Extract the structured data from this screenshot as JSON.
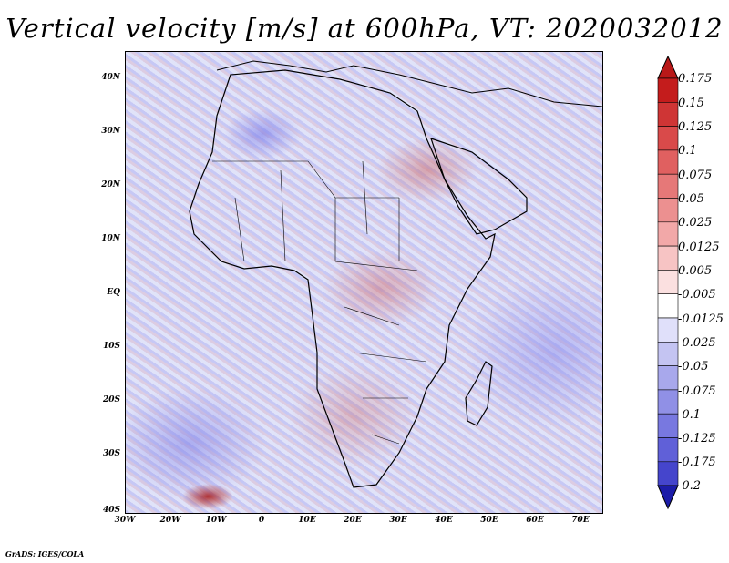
{
  "title": "Vertical velocity [m/s] at 600hPa, VT: 2020032012",
  "footer": "GrADS: IGES/COLA",
  "lat_labels": [
    "40N",
    "30N",
    "20N",
    "10N",
    "EQ",
    "10S",
    "20S",
    "30S",
    "40S"
  ],
  "lon_labels": [
    "30W",
    "20W",
    "10W",
    "0",
    "10E",
    "20E",
    "30E",
    "40E",
    "50E",
    "60E",
    "70E"
  ],
  "colorbar": {
    "labels": [
      "0.175",
      "0.15",
      "0.125",
      "0.1",
      "0.075",
      "0.05",
      "0.025",
      "0.0125",
      "0.005",
      "-0.005",
      "-0.0125",
      "-0.025",
      "-0.05",
      "-0.075",
      "-0.1",
      "-0.125",
      "-0.175",
      "-0.2"
    ],
    "colors": [
      "#c41c1c",
      "#cf3535",
      "#d94a4a",
      "#e06060",
      "#e67878",
      "#ec9090",
      "#f2a8a8",
      "#f7c4c4",
      "#fbe0e0",
      "#ffffff",
      "#e0e0fa",
      "#c4c4f2",
      "#a8a8ec",
      "#9090e6",
      "#7878e0",
      "#6060d8",
      "#4545cc",
      "#2f2fbd",
      "#1c1ca8"
    ]
  }
}
